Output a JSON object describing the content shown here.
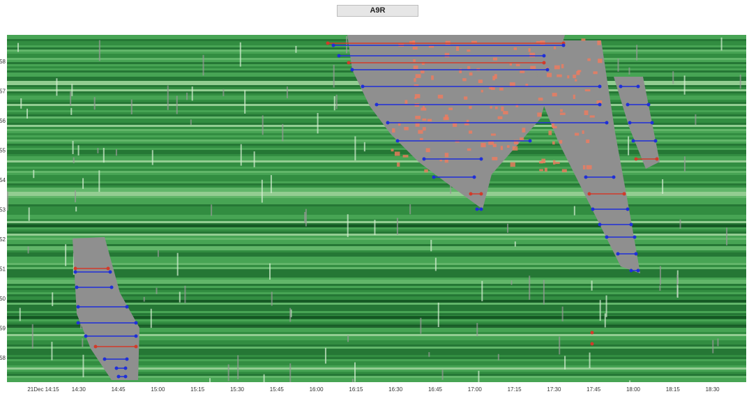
{
  "header": {
    "button": "A9R"
  },
  "y_labels": [
    "58",
    "57",
    "56",
    "55",
    "54",
    "53",
    "52",
    "51",
    "50",
    "59",
    "58"
  ],
  "x_labels": [
    "21Dec 14:15",
    "14:30",
    "14:45",
    "15:00",
    "15:15",
    "15:30",
    "15:45",
    "16:00",
    "16:15",
    "16:30",
    "16:45",
    "17:00",
    "17:15",
    "17:30",
    "17:45",
    "18:00",
    "18:15",
    "18:30"
  ]
}
